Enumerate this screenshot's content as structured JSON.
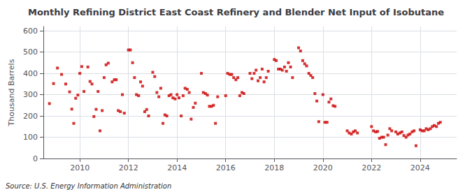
{
  "chart_data": {
    "type": "scatter",
    "title": "Monthly Refining District East Coast Refinery and Blender Net Input of Isobutane",
    "ylabel": "Thousand Barrels",
    "source": "Source: U.S. Energy Information Administration",
    "color": "#cc0000",
    "marker": "square",
    "grid": true,
    "xlim": [
      2008.5,
      2025.5
    ],
    "ylim": [
      0,
      620
    ],
    "xticks": [
      2010,
      2012,
      2014,
      2016,
      2018,
      2020,
      2022,
      2024
    ],
    "yticks": [
      0,
      100,
      200,
      300,
      400,
      500,
      600
    ],
    "x": [
      2008.75,
      2008.92,
      2009.08,
      2009.25,
      2009.42,
      2009.58,
      2009.67,
      2009.75,
      2009.83,
      2009.92,
      2010.0,
      2010.08,
      2010.17,
      2010.33,
      2010.42,
      2010.5,
      2010.58,
      2010.67,
      2010.75,
      2010.83,
      2010.92,
      2011.0,
      2011.08,
      2011.17,
      2011.33,
      2011.42,
      2011.5,
      2011.58,
      2011.67,
      2011.75,
      2011.83,
      2012.0,
      2012.08,
      2012.17,
      2012.25,
      2012.33,
      2012.42,
      2012.5,
      2012.58,
      2012.67,
      2012.75,
      2012.83,
      2013.0,
      2013.08,
      2013.17,
      2013.25,
      2013.33,
      2013.42,
      2013.5,
      2013.58,
      2013.67,
      2013.75,
      2013.83,
      2013.92,
      2014.0,
      2014.08,
      2014.17,
      2014.25,
      2014.33,
      2014.42,
      2014.5,
      2014.58,
      2014.67,
      2014.75,
      2015.0,
      2015.08,
      2015.17,
      2015.25,
      2015.33,
      2015.42,
      2015.5,
      2015.58,
      2015.67,
      2016.0,
      2016.08,
      2016.17,
      2016.25,
      2016.33,
      2016.42,
      2016.5,
      2016.58,
      2016.67,
      2016.75,
      2017.0,
      2017.08,
      2017.17,
      2017.25,
      2017.33,
      2017.42,
      2017.5,
      2017.58,
      2017.67,
      2017.75,
      2018.0,
      2018.08,
      2018.17,
      2018.25,
      2018.33,
      2018.42,
      2018.5,
      2018.58,
      2018.67,
      2018.75,
      2019.0,
      2019.08,
      2019.17,
      2019.25,
      2019.33,
      2019.42,
      2019.5,
      2019.58,
      2019.67,
      2019.75,
      2019.83,
      2020.0,
      2020.08,
      2020.17,
      2020.25,
      2020.33,
      2020.42,
      2020.5,
      2021.0,
      2021.08,
      2021.17,
      2021.25,
      2021.33,
      2021.42,
      2022.0,
      2022.08,
      2022.17,
      2022.25,
      2022.33,
      2022.42,
      2022.5,
      2022.58,
      2022.67,
      2022.75,
      2022.83,
      2023.0,
      2023.08,
      2023.17,
      2023.25,
      2023.33,
      2023.42,
      2023.5,
      2023.58,
      2023.67,
      2023.75,
      2023.83,
      2024.0,
      2024.08,
      2024.17,
      2024.25,
      2024.33,
      2024.42,
      2024.5,
      2024.58,
      2024.67,
      2024.75,
      2024.83
    ],
    "values": [
      258,
      352,
      425,
      395,
      350,
      313,
      232,
      165,
      283,
      298,
      400,
      432,
      315,
      430,
      362,
      350,
      197,
      231,
      315,
      130,
      225,
      380,
      440,
      448,
      360,
      370,
      370,
      225,
      220,
      300,
      213,
      510,
      510,
      450,
      380,
      300,
      295,
      360,
      340,
      220,
      230,
      200,
      405,
      385,
      310,
      290,
      330,
      165,
      205,
      200,
      295,
      300,
      285,
      280,
      300,
      285,
      200,
      295,
      330,
      325,
      310,
      185,
      240,
      260,
      400,
      310,
      305,
      298,
      245,
      245,
      250,
      165,
      290,
      295,
      400,
      395,
      395,
      380,
      370,
      380,
      295,
      310,
      305,
      400,
      375,
      400,
      415,
      365,
      380,
      420,
      360,
      380,
      410,
      465,
      460,
      420,
      420,
      415,
      430,
      410,
      450,
      430,
      380,
      520,
      505,
      460,
      445,
      435,
      400,
      390,
      380,
      305,
      270,
      173,
      300,
      170,
      170,
      265,
      280,
      248,
      245,
      130,
      120,
      115,
      125,
      130,
      120,
      150,
      130,
      125,
      127,
      95,
      100,
      100,
      65,
      110,
      140,
      130,
      125,
      115,
      120,
      125,
      108,
      100,
      110,
      115,
      125,
      130,
      60,
      135,
      130,
      130,
      140,
      135,
      140,
      150,
      155,
      150,
      165,
      170
    ]
  }
}
